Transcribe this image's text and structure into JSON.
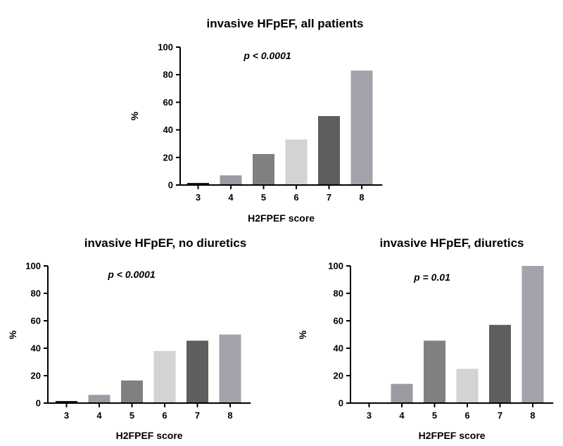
{
  "chart_data": [
    {
      "type": "bar",
      "title": "invasive HFpEF, all patients",
      "annotation": "p < 0.0001",
      "xlabel": "H2FPEF score",
      "ylabel": "%",
      "categories": [
        "3",
        "4",
        "5",
        "6",
        "7",
        "8"
      ],
      "values": [
        1.5,
        7,
        22.5,
        33,
        50,
        83
      ],
      "colors": [
        "#111111",
        "#9b9ba3",
        "#808080",
        "#d3d3d3",
        "#5e5e5e",
        "#a3a3ab"
      ],
      "ylim": [
        0,
        100
      ],
      "yticks": [
        0,
        20,
        40,
        60,
        80,
        100
      ],
      "grid": false
    },
    {
      "type": "bar",
      "title": "invasive HFpEF, no diuretics",
      "annotation": "p < 0.0001",
      "xlabel": "H2FPEF score",
      "ylabel": "%",
      "categories": [
        "3",
        "4",
        "5",
        "6",
        "7",
        "8"
      ],
      "values": [
        1.5,
        6,
        16.5,
        38,
        45.5,
        50
      ],
      "colors": [
        "#111111",
        "#9b9ba3",
        "#808080",
        "#d3d3d3",
        "#5e5e5e",
        "#a3a3ab"
      ],
      "ylim": [
        0,
        100
      ],
      "yticks": [
        0,
        20,
        40,
        60,
        80,
        100
      ],
      "grid": false
    },
    {
      "type": "bar",
      "title": "invasive HFpEF, diuretics",
      "annotation": "p = 0.01",
      "xlabel": "H2FPEF score",
      "ylabel": "%",
      "categories": [
        "3",
        "4",
        "5",
        "6",
        "7",
        "8"
      ],
      "values": [
        0,
        14,
        45.5,
        25,
        57,
        100
      ],
      "colors": [
        "#111111",
        "#9b9ba3",
        "#808080",
        "#d3d3d3",
        "#5e5e5e",
        "#a3a3ab"
      ],
      "ylim": [
        0,
        100
      ],
      "yticks": [
        0,
        20,
        40,
        60,
        80,
        100
      ],
      "grid": false
    }
  ]
}
